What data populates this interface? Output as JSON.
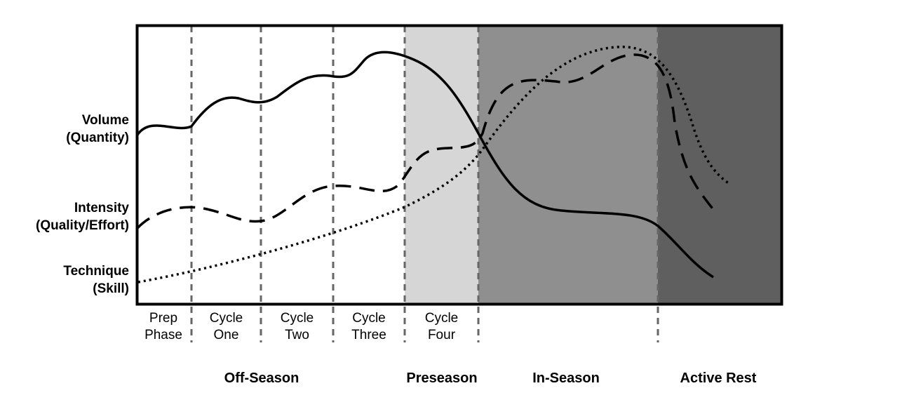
{
  "colors": {
    "preseason_band": "#d6d6d6",
    "in_season_band": "#8f8f8f",
    "active_rest_band": "#5f5f5f",
    "divider": "#666666",
    "line": "#000000"
  },
  "row_labels": {
    "volume": {
      "line1": "Volume",
      "line2": "(Quantity)",
      "line_style": "solid"
    },
    "intensity": {
      "line1": "Intensity",
      "line2": "(Quality/Effort)",
      "line_style": "dashed"
    },
    "technique": {
      "line1": "Technique",
      "line2": "(Skill)",
      "line_style": "dotted"
    }
  },
  "phases": [
    {
      "line1": "Prep",
      "line2": "Phase"
    },
    {
      "line1": "Cycle",
      "line2": "One"
    },
    {
      "line1": "Cycle",
      "line2": "Two"
    },
    {
      "line1": "Cycle",
      "line2": "Three"
    },
    {
      "line1": "Cycle",
      "line2": "Four"
    }
  ],
  "seasons": {
    "off_season": "Off-Season",
    "preseason": "Preseason",
    "in_season": "In-Season",
    "active_rest": "Active Rest"
  }
}
